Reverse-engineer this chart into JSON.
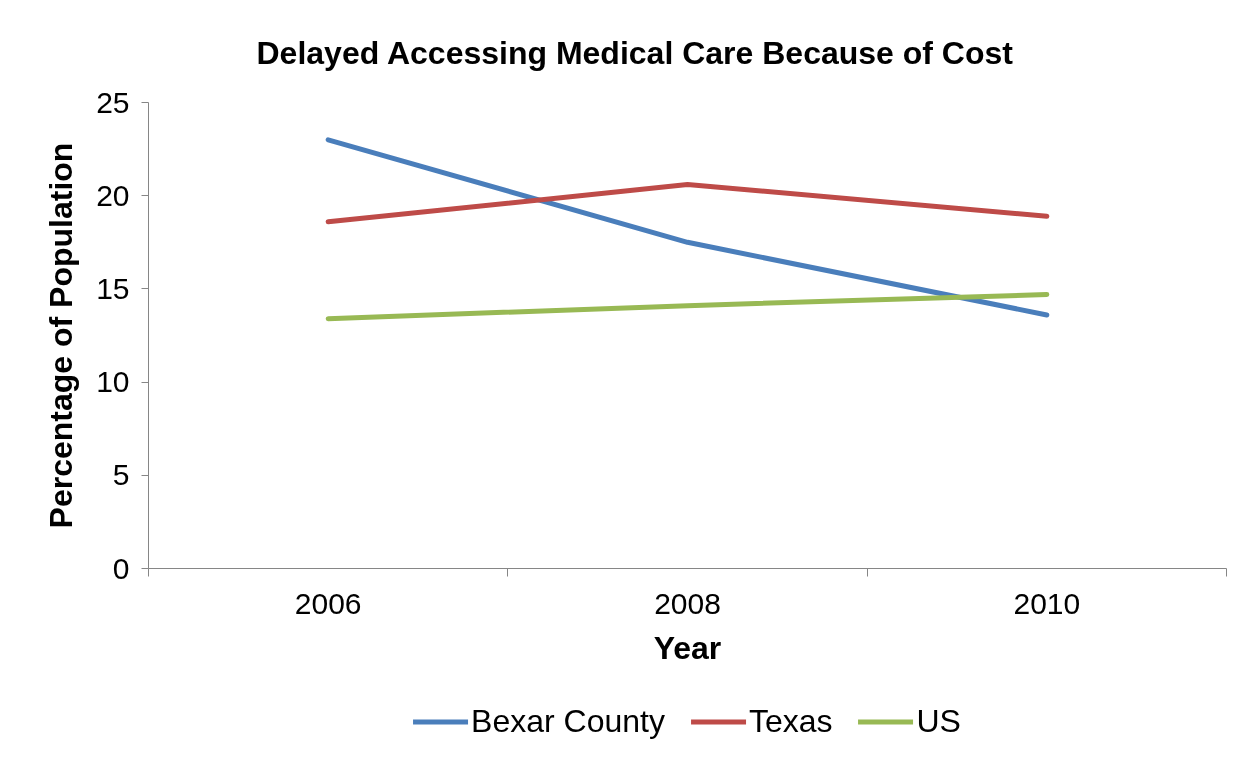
{
  "chart_data": {
    "type": "line",
    "title": "Delayed Accessing Medical Care Because of Cost",
    "xlabel": "Year",
    "ylabel": "Percentage of Population",
    "categories": [
      "2006",
      "2008",
      "2010"
    ],
    "series": [
      {
        "name": "Bexar County",
        "color": "#4a7ebb",
        "values": [
          23.0,
          17.5,
          13.6
        ]
      },
      {
        "name": "Texas",
        "color": "#be4b48",
        "values": [
          18.6,
          20.6,
          18.9
        ]
      },
      {
        "name": "US",
        "color": "#98b954",
        "values": [
          13.4,
          14.1,
          14.7
        ]
      }
    ],
    "ylim": [
      0,
      25
    ],
    "yticks": [
      0,
      5,
      10,
      15,
      20,
      25
    ],
    "grid": false,
    "legend": "bottom",
    "marker": "none",
    "line_style": "solid"
  }
}
